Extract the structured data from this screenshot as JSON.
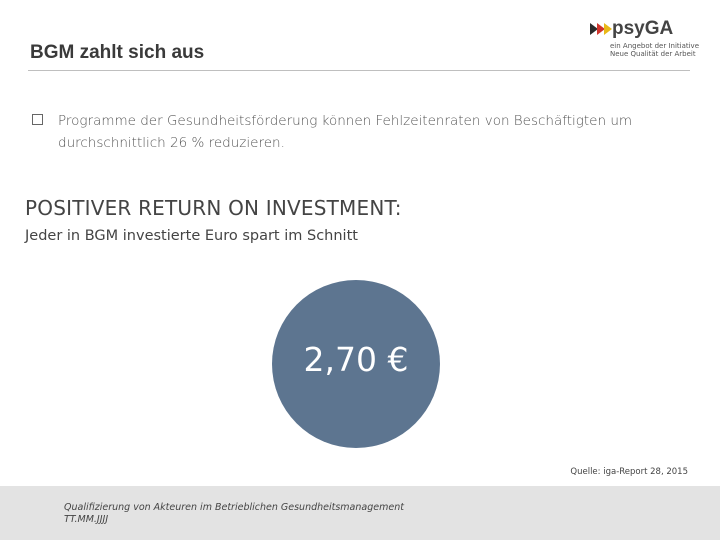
{
  "slide": {
    "title": "BGM zahlt sich aus",
    "logo": {
      "brand": "psyGA",
      "tagline_1": "ein Angebot der Initiative",
      "tagline_2": "Neue Qualität der Arbeit"
    },
    "bullet": "Programme der Gesundheitsförderung können Fehlzeitenraten von Beschäftigten um durchschnittlich 26 % reduzieren.",
    "roi_heading": "POSITIVER RETURN ON INVESTMENT:",
    "roi_subheading": "Jeder in BGM investierte Euro spart im Schnitt",
    "highlight_value": "2,70 €",
    "source": "Quelle: iga-Report 28, 2015",
    "footer": {
      "line1": "Qualifizierung von Akteuren im Betrieblichen Gesundheitsmanagement",
      "line2": "TT.MM.JJJJ"
    },
    "colors": {
      "circle": "#5d7590",
      "footer_bg": "#e3e3e3",
      "logo_arrows": [
        "#2b2b2b",
        "#d0342c",
        "#e8b818"
      ]
    }
  }
}
